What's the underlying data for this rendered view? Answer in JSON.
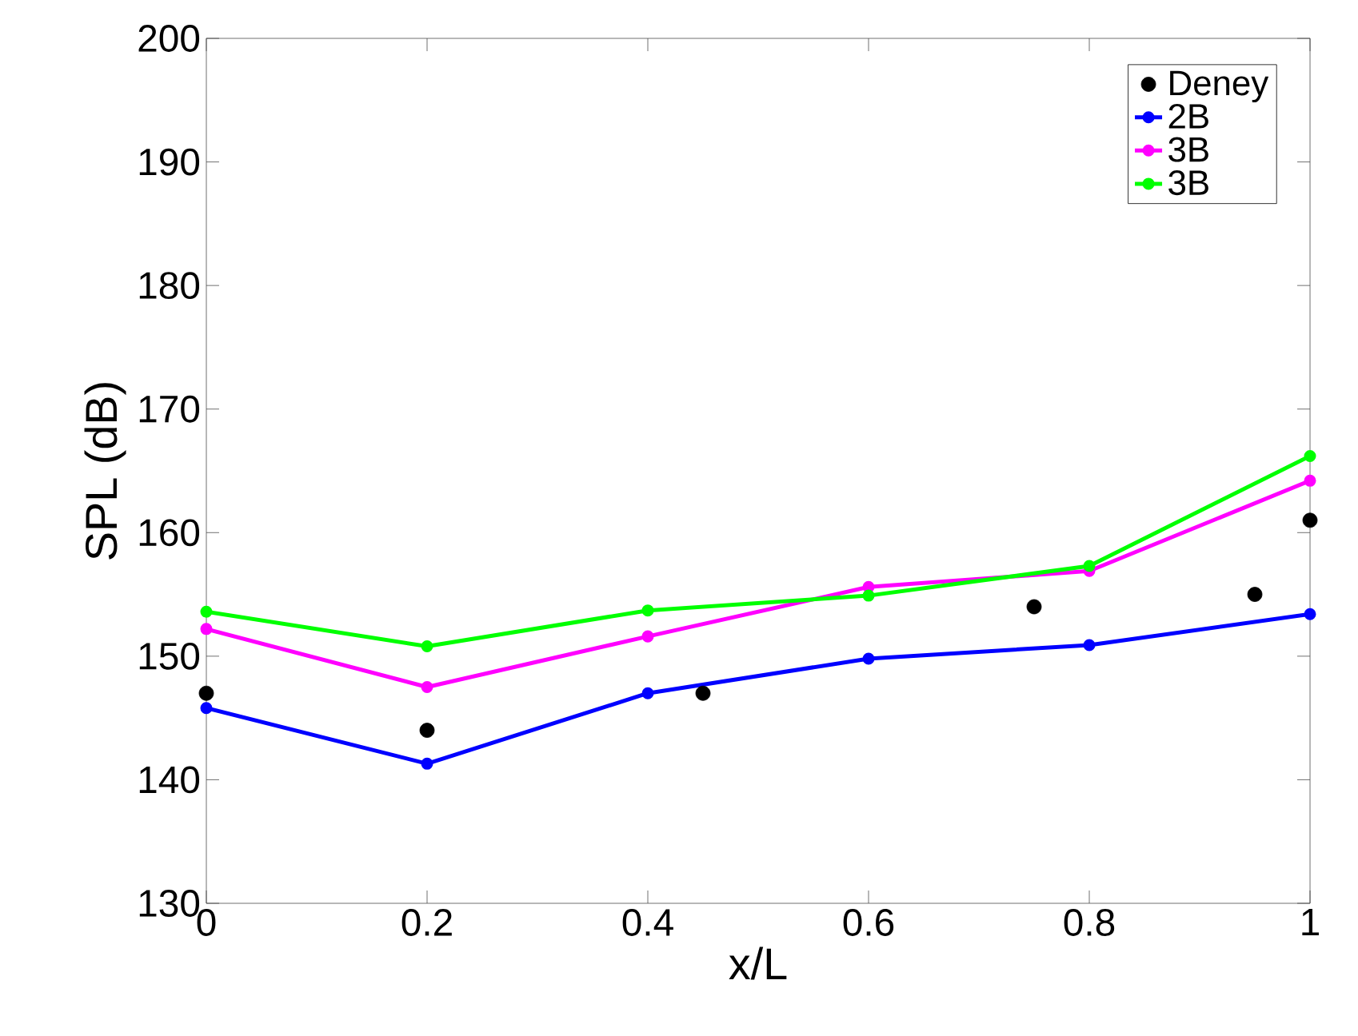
{
  "chart_data": {
    "type": "line",
    "xlabel": "x/L",
    "ylabel": "SPL (dB)",
    "xlim": [
      0,
      1
    ],
    "ylim": [
      130,
      200
    ],
    "xticks": [
      0,
      0.2,
      0.4,
      0.6,
      0.8,
      1
    ],
    "yticks": [
      130,
      140,
      150,
      160,
      170,
      180,
      190,
      200
    ],
    "grid": false,
    "legend": "top right",
    "line_style": "solid",
    "series": [
      {
        "name": "Deney",
        "type": "scatter",
        "marker": "circle",
        "color": "#000000",
        "x": [
          0,
          0.2,
          0.45,
          0.75,
          0.95,
          1
        ],
        "values": [
          147,
          144,
          147,
          154,
          155,
          161
        ]
      },
      {
        "name": "2B",
        "marker": "circle",
        "color": "#0000ff",
        "x": [
          0,
          0.2,
          0.4,
          0.6,
          0.8,
          1
        ],
        "values": [
          145.8,
          141.3,
          147,
          149.8,
          150.9,
          153.4
        ]
      },
      {
        "name": "3B",
        "marker": "circle",
        "color": "#ff00ff",
        "x": [
          0,
          0.2,
          0.4,
          0.6,
          0.8,
          1
        ],
        "values": [
          152.2,
          147.5,
          151.6,
          155.6,
          156.9,
          164.2
        ]
      },
      {
        "name": "3B",
        "marker": "circle",
        "color": "#00ff00",
        "x": [
          0,
          0.2,
          0.4,
          0.6,
          0.8,
          1
        ],
        "values": [
          153.6,
          150.8,
          153.7,
          154.9,
          157.3,
          166.2
        ]
      }
    ]
  }
}
